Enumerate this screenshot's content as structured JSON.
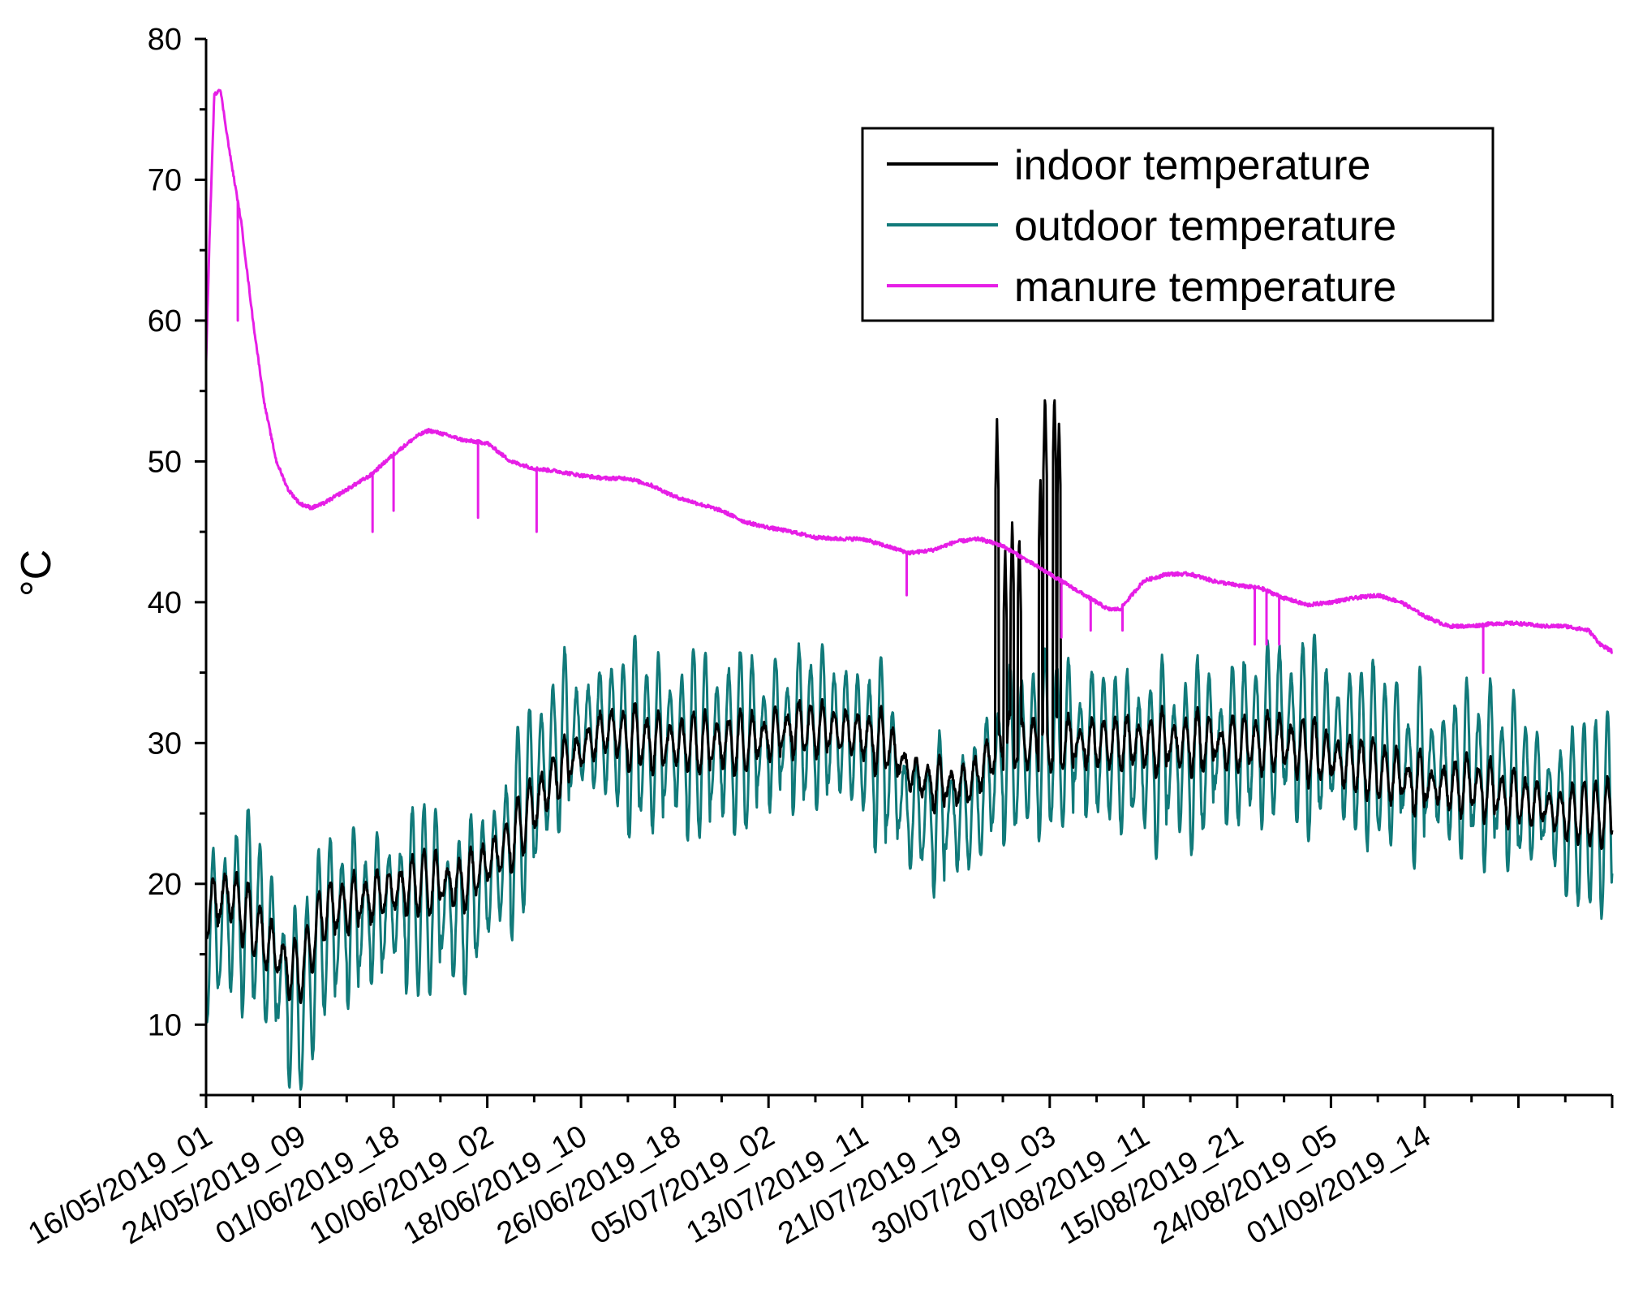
{
  "chart_data": {
    "type": "line",
    "title": "",
    "xlabel": "",
    "ylabel": "°C",
    "ylim": [
      5,
      80
    ],
    "yticks": [
      10,
      20,
      30,
      40,
      50,
      60,
      70,
      80
    ],
    "x_range_days": [
      0,
      120
    ],
    "x_tick_labels": [
      {
        "label": "16/05/2019_01",
        "day": 0
      },
      {
        "label": "24/05/2019_09",
        "day": 8
      },
      {
        "label": "01/06/2019_18",
        "day": 16
      },
      {
        "label": "10/06/2019_02",
        "day": 24
      },
      {
        "label": "18/06/2019_10",
        "day": 32
      },
      {
        "label": "26/06/2019_18",
        "day": 40
      },
      {
        "label": "05/07/2019_02",
        "day": 48
      },
      {
        "label": "13/07/2019_11",
        "day": 56
      },
      {
        "label": "21/07/2019_19",
        "day": 64
      },
      {
        "label": "30/07/2019_03",
        "day": 72
      },
      {
        "label": "07/08/2019_11",
        "day": 80
      },
      {
        "label": "15/08/2019_21",
        "day": 88
      },
      {
        "label": "24/08/2019_05",
        "day": 96
      },
      {
        "label": "01/09/2019_14",
        "day": 104
      }
    ],
    "legend_position": "top-right",
    "series": [
      {
        "name": "indoor temperature",
        "color": "#000000",
        "baseline": [
          [
            0,
            18
          ],
          [
            2,
            19.5
          ],
          [
            4,
            17
          ],
          [
            6,
            15
          ],
          [
            8,
            13.5
          ],
          [
            10,
            18
          ],
          [
            14,
            19
          ],
          [
            18,
            20
          ],
          [
            22,
            20
          ],
          [
            26,
            23
          ],
          [
            30,
            28
          ],
          [
            34,
            31
          ],
          [
            38,
            30
          ],
          [
            42,
            30
          ],
          [
            46,
            30
          ],
          [
            50,
            31
          ],
          [
            54,
            31
          ],
          [
            58,
            30
          ],
          [
            60,
            28
          ],
          [
            62,
            27
          ],
          [
            65,
            27
          ],
          [
            68,
            30
          ],
          [
            72,
            30
          ],
          [
            76,
            30
          ],
          [
            80,
            30
          ],
          [
            84,
            30
          ],
          [
            88,
            30
          ],
          [
            92,
            30
          ],
          [
            96,
            29
          ],
          [
            100,
            28
          ],
          [
            104,
            27
          ],
          [
            108,
            27
          ],
          [
            112,
            26
          ],
          [
            116,
            25
          ],
          [
            120,
            25
          ]
        ],
        "amplitude": 1.8,
        "spikes": [
          [
            67.5,
            53
          ],
          [
            68.2,
            44
          ],
          [
            68.8,
            46
          ],
          [
            69.4,
            45
          ],
          [
            71.2,
            49
          ],
          [
            71.6,
            55
          ],
          [
            72.4,
            55
          ],
          [
            72.8,
            53
          ]
        ]
      },
      {
        "name": "outdoor temperature",
        "color": "#117a7a",
        "baseline": [
          [
            0,
            16
          ],
          [
            2,
            18
          ],
          [
            4,
            18
          ],
          [
            6,
            14
          ],
          [
            8,
            11
          ],
          [
            10,
            17
          ],
          [
            14,
            18
          ],
          [
            18,
            19
          ],
          [
            22,
            18
          ],
          [
            26,
            23
          ],
          [
            30,
            30
          ],
          [
            34,
            31
          ],
          [
            38,
            30
          ],
          [
            42,
            30
          ],
          [
            46,
            30
          ],
          [
            50,
            31
          ],
          [
            54,
            31
          ],
          [
            58,
            29
          ],
          [
            60,
            25
          ],
          [
            62,
            25
          ],
          [
            65,
            25
          ],
          [
            68,
            29
          ],
          [
            72,
            30
          ],
          [
            76,
            30
          ],
          [
            80,
            29
          ],
          [
            84,
            29
          ],
          [
            88,
            30
          ],
          [
            92,
            31
          ],
          [
            96,
            30
          ],
          [
            100,
            29
          ],
          [
            104,
            28
          ],
          [
            108,
            28
          ],
          [
            112,
            27
          ],
          [
            116,
            25
          ],
          [
            120,
            25
          ]
        ],
        "amplitude": 5.5
      },
      {
        "name": "manure temperature",
        "color": "#e61ee6",
        "points": [
          [
            0,
            57
          ],
          [
            0.3,
            66
          ],
          [
            0.7,
            76
          ],
          [
            1.2,
            76.5
          ],
          [
            2,
            72
          ],
          [
            3,
            67
          ],
          [
            4,
            60
          ],
          [
            5,
            54
          ],
          [
            6,
            50
          ],
          [
            7,
            48
          ],
          [
            8,
            47
          ],
          [
            9,
            46.7
          ],
          [
            10,
            47
          ],
          [
            12,
            48
          ],
          [
            14,
            49
          ],
          [
            16,
            50.5
          ],
          [
            18,
            51.8
          ],
          [
            19,
            52.2
          ],
          [
            20,
            52
          ],
          [
            22,
            51.5
          ],
          [
            24,
            51.3
          ],
          [
            26,
            50
          ],
          [
            28,
            49.5
          ],
          [
            30,
            49.3
          ],
          [
            32,
            49
          ],
          [
            34,
            48.8
          ],
          [
            36,
            48.8
          ],
          [
            38,
            48.3
          ],
          [
            40,
            47.5
          ],
          [
            42,
            47
          ],
          [
            44,
            46.5
          ],
          [
            46,
            45.7
          ],
          [
            48,
            45.3
          ],
          [
            50,
            45
          ],
          [
            52,
            44.6
          ],
          [
            54,
            44.5
          ],
          [
            56,
            44.5
          ],
          [
            58,
            44
          ],
          [
            60,
            43.5
          ],
          [
            62,
            43.7
          ],
          [
            64,
            44.3
          ],
          [
            66,
            44.5
          ],
          [
            68,
            44
          ],
          [
            70,
            43
          ],
          [
            72,
            42
          ],
          [
            74,
            41
          ],
          [
            75,
            40.5
          ],
          [
            76,
            40
          ],
          [
            77,
            39.5
          ],
          [
            78,
            39.5
          ],
          [
            79,
            40.5
          ],
          [
            80,
            41.5
          ],
          [
            82,
            42
          ],
          [
            84,
            42
          ],
          [
            86,
            41.5
          ],
          [
            88,
            41.2
          ],
          [
            90,
            41
          ],
          [
            92,
            40.3
          ],
          [
            94,
            39.8
          ],
          [
            96,
            40
          ],
          [
            98,
            40.3
          ],
          [
            100,
            40.5
          ],
          [
            102,
            40
          ],
          [
            104,
            39
          ],
          [
            106,
            38.3
          ],
          [
            108,
            38.3
          ],
          [
            110,
            38.5
          ],
          [
            112,
            38.5
          ],
          [
            114,
            38.3
          ],
          [
            116,
            38.3
          ],
          [
            118,
            38
          ],
          [
            119,
            37
          ],
          [
            120,
            36.5
          ]
        ],
        "dips": [
          [
            2.7,
            60
          ],
          [
            14.2,
            45
          ],
          [
            16,
            46.5
          ],
          [
            23.2,
            46
          ],
          [
            28.2,
            45
          ],
          [
            59.8,
            40.5
          ],
          [
            73,
            37.5
          ],
          [
            75.5,
            38
          ],
          [
            78.2,
            38
          ],
          [
            89.5,
            37
          ],
          [
            90.5,
            37
          ],
          [
            91.6,
            37
          ],
          [
            109,
            35
          ]
        ]
      }
    ]
  }
}
